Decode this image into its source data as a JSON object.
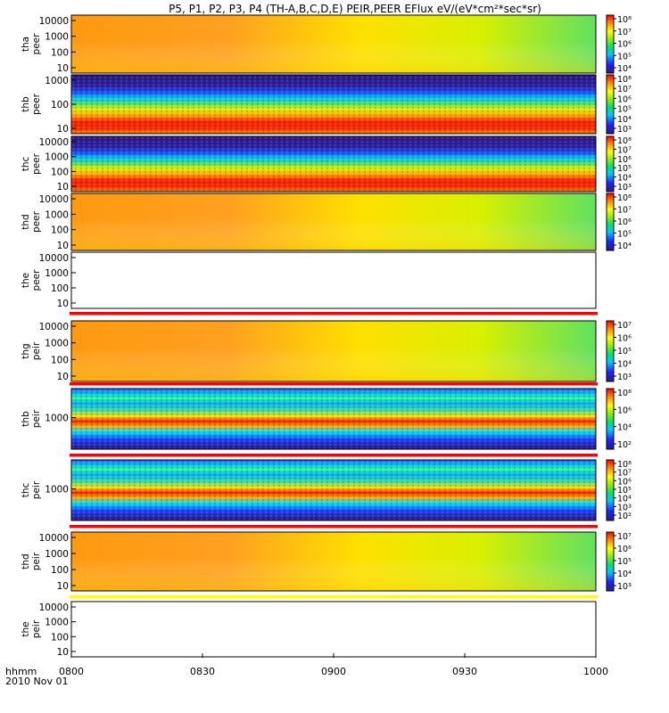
{
  "title": "P5, P1, P2, P3, P4 (TH-A,B,C,D,E) PEIR,PEER EFlux eV/(eV*cm²*sec*sr)",
  "time_axis": {
    "label_top": "hhmm",
    "label_bottom": "2010 Nov 01",
    "ticks": [
      "0800",
      "0830",
      "0900",
      "0930",
      "1000"
    ]
  },
  "chart_data": [
    {
      "type": "heatmap",
      "name": "tha peer",
      "ylabel": [
        "tha",
        "peer"
      ],
      "yticks": [
        "10000",
        "1000",
        "100",
        "10"
      ],
      "colorbar": [
        "10⁸",
        "10⁷",
        "10⁶",
        "10⁵",
        "10⁴"
      ],
      "empty": false
    },
    {
      "type": "heatmap",
      "name": "thb peer",
      "ylabel": [
        "thb",
        "peer"
      ],
      "yticks": [
        "1000",
        "100",
        "10"
      ],
      "colorbar": [
        "10⁸",
        "10⁷",
        "10⁶",
        "10⁵",
        "10⁴",
        "10³"
      ],
      "empty": false
    },
    {
      "type": "heatmap",
      "name": "thc peer",
      "ylabel": [
        "thc",
        "peer"
      ],
      "yticks": [
        "10000",
        "1000",
        "100",
        "10"
      ],
      "colorbar": [
        "10⁸",
        "10⁷",
        "10⁶",
        "10⁵",
        "10⁴",
        "10³"
      ],
      "empty": false
    },
    {
      "type": "heatmap",
      "name": "thd peer",
      "ylabel": [
        "thd",
        "peer"
      ],
      "yticks": [
        "10000",
        "1000",
        "100",
        "10"
      ],
      "colorbar": [
        "10⁸",
        "10⁷",
        "10⁶",
        "10⁵",
        "10⁴"
      ],
      "empty": false
    },
    {
      "type": "heatmap",
      "name": "the peer",
      "ylabel": [
        "the",
        "peer"
      ],
      "yticks": [
        "10000",
        "1000",
        "100",
        "10"
      ],
      "colorbar": [],
      "empty": true
    },
    {
      "type": "heatmap",
      "name": "thg peir",
      "ylabel": [
        "thg",
        "peir"
      ],
      "yticks": [
        "10000",
        "1000",
        "100",
        "10"
      ],
      "colorbar": [
        "10⁷",
        "10⁶",
        "10⁵",
        "10⁴",
        "10³"
      ],
      "empty": false
    },
    {
      "type": "heatmap",
      "name": "thb peir",
      "ylabel": [
        "thb",
        "peir"
      ],
      "yticks": [
        "1000"
      ],
      "colorbar": [
        "10⁸",
        "10⁶",
        "10⁴",
        "10²"
      ],
      "empty": false
    },
    {
      "type": "heatmap",
      "name": "thc peir",
      "ylabel": [
        "thc",
        "peir"
      ],
      "yticks": [
        "1000"
      ],
      "colorbar": [
        "10⁸",
        "10⁷",
        "10⁶",
        "10⁵",
        "10⁴",
        "10³",
        "10²"
      ],
      "empty": false
    },
    {
      "type": "heatmap",
      "name": "thd peir",
      "ylabel": [
        "thd",
        "peir"
      ],
      "yticks": [
        "10000",
        "1000",
        "100",
        "10"
      ],
      "colorbar": [
        "10⁷",
        "10⁶",
        "10⁵",
        "10⁴",
        "10³"
      ],
      "empty": false
    },
    {
      "type": "heatmap",
      "name": "the peir",
      "ylabel": [
        "the",
        "peir"
      ],
      "yticks": [
        "10000",
        "1000",
        "100",
        "10"
      ],
      "colorbar": [],
      "empty": true
    }
  ]
}
